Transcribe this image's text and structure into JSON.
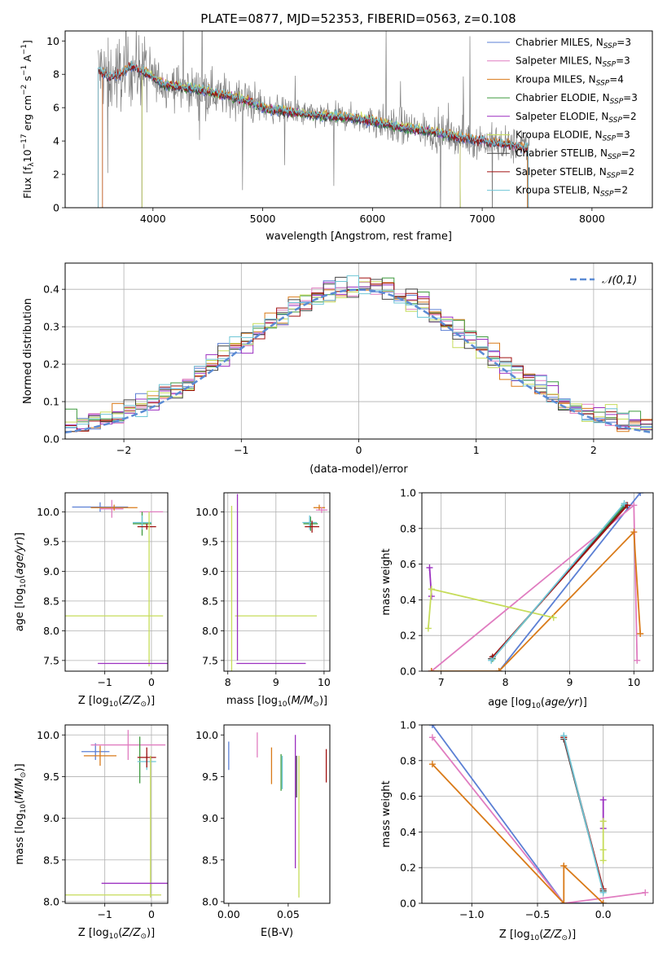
{
  "title": "PLATE=0877, MJD=52353, FIBERID=0563, z=0.108",
  "colors": {
    "Chabrier MILES": "#5b7fd4",
    "Salpeter MILES": "#e07cc0",
    "Kroupa MILES": "#d97a18",
    "Chabrier ELODIE": "#3f9a3f",
    "Salpeter ELODIE": "#9b2fc0",
    "Kroupa ELODIE": "#c6dc5a",
    "Chabrier STELIB": "#444444",
    "Salpeter STELIB": "#a01010",
    "Kroupa STELIB": "#6ec6d6",
    "data": "#808080"
  },
  "chart_data": [
    {
      "id": "spectrum",
      "type": "line",
      "xlabel": "wavelength [Angstrom, rest frame]",
      "ylabel": "Flux [f_λ10^-17 erg cm^-2 s^-1 A^-1]",
      "xlim": [
        3200,
        8550
      ],
      "ylim": [
        0,
        10.6
      ],
      "xticks": [
        4000,
        5000,
        6000,
        7000,
        8000
      ],
      "yticks": [
        0,
        2,
        4,
        6,
        8,
        10
      ],
      "legend_position": "top-right",
      "legend": [
        {
          "base": "Chabrier MILES, N",
          "sub": "SSP",
          "tail": "=3"
        },
        {
          "base": "Salpeter MILES, N",
          "sub": "SSP",
          "tail": "=3"
        },
        {
          "base": "Kroupa MILES, N",
          "sub": "SSP",
          "tail": "=4"
        },
        {
          "base": "Chabrier ELODIE, N",
          "sub": "SSP",
          "tail": "=3"
        },
        {
          "base": "Salpeter ELODIE, N",
          "sub": "SSP",
          "tail": "=2"
        },
        {
          "base": "Kroupa ELODIE, N",
          "sub": "SSP",
          "tail": "=3"
        },
        {
          "base": "Chabrier STELIB, N",
          "sub": "SSP",
          "tail": "=2"
        },
        {
          "base": "Salpeter STELIB, N",
          "sub": "SSP",
          "tail": "=2"
        },
        {
          "base": "Kroupa STELIB, N",
          "sub": "SSP",
          "tail": "=2"
        }
      ],
      "model_trend": {
        "x": [
          3500,
          3600,
          3700,
          3800,
          3900,
          4000,
          4100,
          4200,
          4300,
          4400,
          4500,
          4600,
          4700,
          4800,
          4900,
          5000,
          5200,
          5400,
          5600,
          5800,
          6000,
          6200,
          6400,
          6600,
          6800,
          7000,
          7200,
          7400
        ],
        "y": [
          8.3,
          7.8,
          8.0,
          8.5,
          8.2,
          7.8,
          7.4,
          7.3,
          7.2,
          7.1,
          7.0,
          6.8,
          6.7,
          6.5,
          6.3,
          6.0,
          5.8,
          5.6,
          5.5,
          5.4,
          5.2,
          4.9,
          4.7,
          4.5,
          4.2,
          4.0,
          3.8,
          3.6
        ]
      }
    },
    {
      "id": "residuals",
      "type": "histogram",
      "xlabel": "(data-model)/error",
      "ylabel": "Normed distribution",
      "xlim": [
        -2.5,
        2.5
      ],
      "ylim": [
        0,
        0.47
      ],
      "xticks": [
        -2,
        -1,
        0,
        1,
        2
      ],
      "yticks": [
        0.0,
        0.1,
        0.2,
        0.3,
        0.4
      ],
      "grid": true,
      "legend_position": "top-right",
      "reference_curve": {
        "label": "N(0,1)",
        "mean": 0,
        "sigma": 1,
        "style": "dashed"
      },
      "bin_width": 0.1,
      "bins_from": -2.5,
      "bins_to": 2.5
    },
    {
      "id": "age-vs-Z",
      "type": "errorbar",
      "xlabel": "Z [log10(Z/Z_sun)]",
      "ylabel": "age [log10(age/yr)]",
      "xlim": [
        -1.85,
        0.35
      ],
      "ylim": [
        7.32,
        10.32
      ],
      "xticks": [
        -1,
        0
      ],
      "yticks": [
        7.5,
        8.0,
        8.5,
        9.0,
        9.5,
        10.0
      ],
      "grid": true,
      "points": [
        {
          "model": "Chabrier MILES",
          "x": -1.1,
          "xerr": 0.6,
          "y": 10.08,
          "yerr": 0.08
        },
        {
          "model": "Salpeter MILES",
          "x": -0.85,
          "xerr": 0.25,
          "y": 10.05,
          "yerr": 0.15
        },
        {
          "model": "Kroupa MILES",
          "x": -0.8,
          "xerr": 0.5,
          "y": 10.07,
          "yerr": 0.05
        },
        {
          "model": "Salpeter MILES",
          "x": 0.0,
          "xerr": 0.25,
          "y": 10.0,
          "yerr": 0.0
        },
        {
          "model": "Chabrier ELODIE",
          "x": -0.2,
          "xerr": 0.2,
          "y": 9.8,
          "yerr": 0.2
        },
        {
          "model": "Kroupa STELIB",
          "x": -0.2,
          "xerr": 0.2,
          "y": 9.82,
          "yerr": 0.12
        },
        {
          "model": "Salpeter STELIB",
          "x": -0.1,
          "xerr": 0.2,
          "y": 9.75,
          "yerr": 0.05
        },
        {
          "model": "Kroupa ELODIE",
          "x": -0.05,
          "xerr": 0.0,
          "y": 8.7,
          "yerr": 1.3
        },
        {
          "model": "Kroupa ELODIE",
          "x": -0.8,
          "xerr": 1.05,
          "y": 8.25,
          "yerr": 0.0
        },
        {
          "model": "Salpeter ELODIE",
          "x": -0.35,
          "xerr": 0.8,
          "y": 7.45,
          "yerr": 0.0
        }
      ]
    },
    {
      "id": "age-vs-mass",
      "type": "errorbar",
      "xlabel": "mass [log10(M/M_sun)]",
      "ylabel": "",
      "xlim": [
        7.92,
        10.12
      ],
      "ylim": [
        7.32,
        10.32
      ],
      "xticks": [
        8,
        9,
        10
      ],
      "yticks": [
        7.5,
        8.0,
        8.5,
        9.0,
        9.5,
        10.0
      ],
      "grid": true,
      "points": [
        {
          "model": "Kroupa MILES",
          "x": 9.9,
          "xerr": 0.12,
          "y": 10.07,
          "yerr": 0.05
        },
        {
          "model": "Salpeter MILES",
          "x": 9.95,
          "xerr": 0.12,
          "y": 10.03,
          "yerr": 0.05
        },
        {
          "model": "Chabrier ELODIE",
          "x": 9.72,
          "xerr": 0.15,
          "y": 9.8,
          "yerr": 0.12
        },
        {
          "model": "Kroupa STELIB",
          "x": 9.7,
          "xerr": 0.15,
          "y": 9.82,
          "yerr": 0.12
        },
        {
          "model": "Salpeter STELIB",
          "x": 9.75,
          "xerr": 0.15,
          "y": 9.75,
          "yerr": 0.1
        },
        {
          "model": "Kroupa ELODIE",
          "x": 8.08,
          "xerr": 0.0,
          "y": 8.7,
          "yerr": 1.4
        },
        {
          "model": "Kroupa ELODIE",
          "x": 9.0,
          "xerr": 0.85,
          "y": 8.25,
          "yerr": 0.0
        },
        {
          "model": "Salpeter ELODIE",
          "x": 8.9,
          "xerr": 0.72,
          "y": 7.45,
          "yerr": 0.0
        },
        {
          "model": "Salpeter ELODIE",
          "x": 8.2,
          "xerr": 0.0,
          "y": 8.9,
          "yerr": 1.4
        }
      ]
    },
    {
      "id": "weight-vs-age",
      "type": "line",
      "xlabel": "age [log10(age/yr)]",
      "ylabel": "mass weight",
      "xlim": [
        6.7,
        10.3
      ],
      "ylim": [
        0.0,
        1.0
      ],
      "xticks": [
        7,
        8,
        9,
        10
      ],
      "yticks": [
        0.0,
        0.2,
        0.4,
        0.6,
        0.8,
        1.0
      ],
      "grid": true,
      "series": [
        {
          "model": "Chabrier MILES",
          "x": [
            7.9,
            10.1
          ],
          "y": [
            0.0,
            1.0
          ]
        },
        {
          "model": "Salpeter MILES",
          "x": [
            6.85,
            10.0,
            10.05
          ],
          "y": [
            0.0,
            0.93,
            0.06
          ]
        },
        {
          "model": "Kroupa MILES",
          "x": [
            6.85,
            7.9,
            10.0,
            10.1
          ],
          "y": [
            0.0,
            0.0,
            0.78,
            0.21
          ]
        },
        {
          "model": "Chabrier ELODIE",
          "x": [
            7.8,
            9.85
          ],
          "y": [
            0.07,
            0.93
          ]
        },
        {
          "model": "Salpeter ELODIE",
          "x": [
            6.82,
            6.85
          ],
          "y": [
            0.58,
            0.42
          ]
        },
        {
          "model": "Kroupa ELODIE",
          "x": [
            6.8,
            6.85,
            8.75
          ],
          "y": [
            0.24,
            0.46,
            0.3
          ]
        },
        {
          "model": "Chabrier STELIB",
          "x": [
            7.78,
            9.88
          ],
          "y": [
            0.07,
            0.93
          ]
        },
        {
          "model": "Salpeter STELIB",
          "x": [
            7.8,
            9.9
          ],
          "y": [
            0.08,
            0.93
          ]
        },
        {
          "model": "Kroupa STELIB",
          "x": [
            7.78,
            9.85
          ],
          "y": [
            0.06,
            0.94
          ]
        }
      ]
    },
    {
      "id": "mass-vs-Z",
      "type": "errorbar",
      "xlabel": "Z [log10(Z/Z_sun)]",
      "ylabel": "mass [log10(M/M_sun)]",
      "xlim": [
        -1.85,
        0.35
      ],
      "ylim": [
        7.98,
        10.12
      ],
      "xticks": [
        -1,
        0
      ],
      "yticks": [
        8.0,
        8.5,
        9.0,
        9.5,
        10.0
      ],
      "grid": true,
      "points": [
        {
          "model": "Chabrier MILES",
          "x": -1.2,
          "xerr": 0.3,
          "y": 9.8,
          "yerr": 0.1
        },
        {
          "model": "Salpeter MILES",
          "x": -0.5,
          "xerr": 0.8,
          "y": 9.88,
          "yerr": 0.18
        },
        {
          "model": "Kroupa MILES",
          "x": -1.1,
          "xerr": 0.35,
          "y": 9.75,
          "yerr": 0.12
        },
        {
          "model": "Chabrier ELODIE",
          "x": -0.25,
          "xerr": 0.0,
          "y": 9.7,
          "yerr": 0.28
        },
        {
          "model": "Kroupa STELIB",
          "x": -0.1,
          "xerr": 0.2,
          "y": 9.68,
          "yerr": 0.1
        },
        {
          "model": "Salpeter STELIB",
          "x": -0.1,
          "xerr": 0.2,
          "y": 9.73,
          "yerr": 0.12
        },
        {
          "model": "Kroupa ELODIE",
          "x": -0.82,
          "xerr": 1.03,
          "y": 8.08,
          "yerr": 0.0
        },
        {
          "model": "Kroupa ELODIE",
          "x": -0.02,
          "xerr": 0.0,
          "y": 8.9,
          "yerr": 0.85
        },
        {
          "model": "Salpeter ELODIE",
          "x": -0.35,
          "xerr": 0.72,
          "y": 8.22,
          "yerr": 0.0
        }
      ]
    },
    {
      "id": "mass-vs-EBV",
      "type": "errorbar",
      "xlabel": "E(B-V)",
      "ylabel": "",
      "xlim": [
        -0.004,
        0.085
      ],
      "ylim": [
        7.98,
        10.12
      ],
      "xticks": [
        0.0,
        0.05
      ],
      "xtick_labels": [
        "0.00",
        "0.05"
      ],
      "yticks": [
        8.0,
        8.5,
        9.0,
        9.5,
        10.0
      ],
      "grid": false,
      "points": [
        {
          "model": "Chabrier MILES",
          "x": 0.0,
          "y": 9.75,
          "yerr": 0.17
        },
        {
          "model": "Salpeter MILES",
          "x": 0.024,
          "y": 9.88,
          "yerr": 0.15
        },
        {
          "model": "Kroupa MILES",
          "x": 0.036,
          "y": 9.63,
          "yerr": 0.22
        },
        {
          "model": "Chabrier ELODIE",
          "x": 0.044,
          "y": 9.55,
          "yerr": 0.22
        },
        {
          "model": "Kroupa STELIB",
          "x": 0.045,
          "y": 9.55,
          "yerr": 0.2
        },
        {
          "model": "Salpeter ELODIE",
          "x": 0.056,
          "y": 9.2,
          "yerr": 0.8
        },
        {
          "model": "Kroupa ELODIE",
          "x": 0.059,
          "y": 8.9,
          "yerr": 0.85
        },
        {
          "model": "Chabrier STELIB",
          "x": 0.057,
          "y": 9.5,
          "yerr": 0.25
        },
        {
          "model": "Salpeter STELIB",
          "x": 0.082,
          "y": 9.63,
          "yerr": 0.2
        }
      ]
    },
    {
      "id": "weight-vs-Z",
      "type": "line",
      "xlabel": "Z [log10(Z/Z_sun)]",
      "ylabel": "mass weight",
      "xlim": [
        -1.38,
        0.38
      ],
      "ylim": [
        0.0,
        1.0
      ],
      "xticks": [
        -1.0,
        -0.5,
        0.0
      ],
      "xtick_labels": [
        "−1.0",
        "−0.5",
        "0.0"
      ],
      "yticks": [
        0.0,
        0.2,
        0.4,
        0.6,
        0.8,
        1.0
      ],
      "grid": true,
      "series": [
        {
          "model": "Chabrier MILES",
          "x": [
            -1.3,
            -0.3,
            0.0
          ],
          "y": [
            1.0,
            0.0,
            0.0
          ]
        },
        {
          "model": "Salpeter MILES",
          "x": [
            -1.3,
            -0.3,
            0.32
          ],
          "y": [
            0.93,
            0.0,
            0.06
          ]
        },
        {
          "model": "Kroupa MILES",
          "x": [
            -1.3,
            -0.3,
            -0.3,
            0.0
          ],
          "y": [
            0.78,
            0.0,
            0.21,
            0.0
          ]
        },
        {
          "model": "Chabrier ELODIE",
          "x": [
            -0.3,
            0.0
          ],
          "y": [
            0.93,
            0.07
          ]
        },
        {
          "model": "Salpeter ELODIE",
          "x": [
            0.0,
            0.0
          ],
          "y": [
            0.58,
            0.42
          ]
        },
        {
          "model": "Kroupa ELODIE",
          "x": [
            0.0,
            0.0,
            0.0
          ],
          "y": [
            0.46,
            0.3,
            0.24
          ]
        },
        {
          "model": "Chabrier STELIB",
          "x": [
            -0.3,
            0.0
          ],
          "y": [
            0.92,
            0.07
          ]
        },
        {
          "model": "Salpeter STELIB",
          "x": [
            -0.3,
            0.0
          ],
          "y": [
            0.93,
            0.08
          ]
        },
        {
          "model": "Kroupa STELIB",
          "x": [
            -0.3,
            0.0
          ],
          "y": [
            0.94,
            0.06
          ]
        }
      ]
    }
  ]
}
